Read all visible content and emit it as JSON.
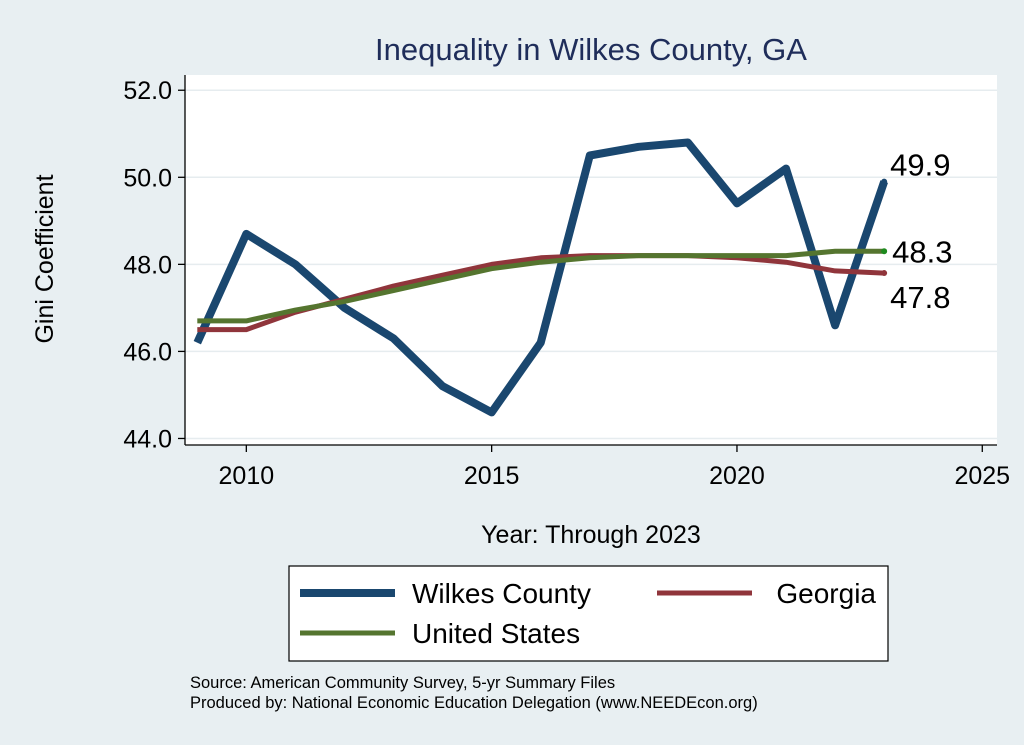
{
  "chart_data": {
    "type": "line",
    "title": "Inequality in Wilkes County, GA",
    "xlabel": "Year: Through 2023",
    "ylabel": "Gini Coefficient",
    "xlim": [
      2008.75,
      2025.3
    ],
    "ylim": [
      43.85,
      52.35
    ],
    "x_ticks": [
      2010,
      2015,
      2020,
      2025
    ],
    "x_tick_labels": [
      "2010",
      "2015",
      "2020",
      "2025"
    ],
    "y_ticks": [
      44,
      46,
      48,
      50,
      52
    ],
    "y_tick_labels": [
      "44.0",
      "46.0",
      "48.0",
      "50.0",
      "52.0"
    ],
    "grid": true,
    "legend_position": "bottom",
    "x": [
      2009,
      2010,
      2011,
      2012,
      2013,
      2014,
      2015,
      2016,
      2017,
      2018,
      2019,
      2020,
      2021,
      2022,
      2023
    ],
    "series": [
      {
        "name": "Wilkes County",
        "color": "#1a476f",
        "values": [
          46.2,
          48.7,
          48.0,
          47.0,
          46.3,
          45.2,
          44.6,
          46.2,
          50.5,
          50.7,
          50.8,
          49.4,
          50.2,
          46.6,
          49.9
        ],
        "end_label": "49.9"
      },
      {
        "name": "Georgia",
        "color": "#90353b",
        "values": [
          46.5,
          46.5,
          46.9,
          47.2,
          47.5,
          47.75,
          48.0,
          48.15,
          48.2,
          48.2,
          48.2,
          48.15,
          48.05,
          47.85,
          47.8
        ],
        "end_label": "47.8"
      },
      {
        "name": "United States",
        "color": "#55752f",
        "values": [
          46.7,
          46.7,
          46.95,
          47.15,
          47.4,
          47.65,
          47.9,
          48.05,
          48.15,
          48.2,
          48.2,
          48.2,
          48.2,
          48.3,
          48.3
        ],
        "end_label": "48.3"
      }
    ]
  },
  "source_lines": [
    "Source: American Community Survey, 5-yr Summary Files",
    "Produced by: National Economic Education Delegation (www.NEEDEcon.org)"
  ]
}
